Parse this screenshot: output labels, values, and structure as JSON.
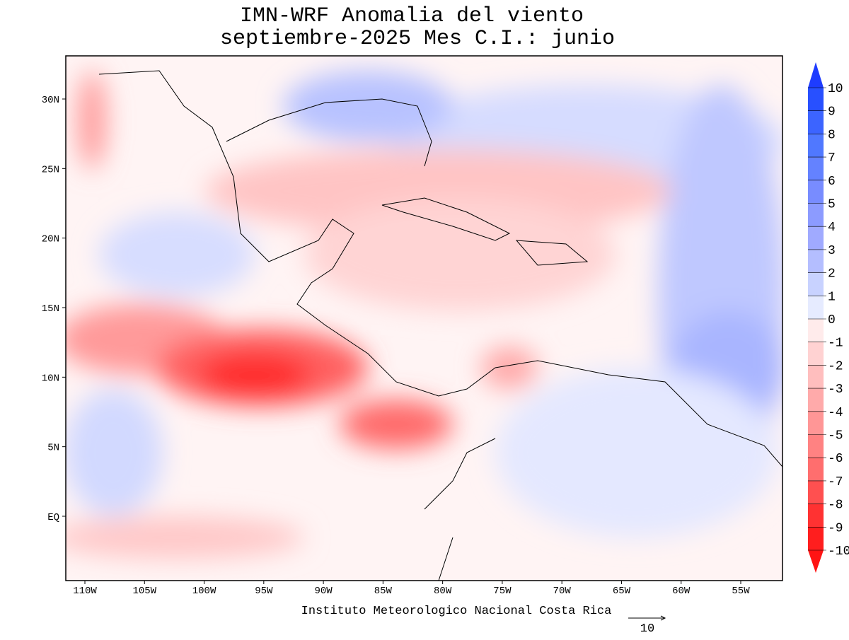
{
  "map": {
    "title": "IMN-WRF Anomalia del viento",
    "subtitle": "septiembre-2025 Mes C.I.: junio",
    "footer": "Instituto Meteorologico Nacional Costa Rica",
    "reference_vector": "10",
    "lon_labels": [
      "110W",
      "105W",
      "100W",
      "95W",
      "90W",
      "85W",
      "80W",
      "75W",
      "70W",
      "65W",
      "60W",
      "55W"
    ],
    "lat_labels": [
      "30N",
      "25N",
      "20N",
      "15N",
      "10N",
      "5N",
      "EQ"
    ],
    "colorbar": {
      "levels": [
        10,
        9,
        8,
        7,
        6,
        5,
        4,
        3,
        2,
        1,
        0,
        -1,
        -2,
        -3,
        -4,
        -5,
        -6,
        -7,
        -8,
        -9,
        -10
      ],
      "colors": [
        "#1e3cff",
        "#2850ff",
        "#3c64ff",
        "#5078ff",
        "#6482ff",
        "#788cff",
        "#8c9bff",
        "#a0aaff",
        "#b4beff",
        "#c8d2ff",
        "#e6ebff",
        "#ffebeb",
        "#ffd2d2",
        "#ffbebe",
        "#ffaaaa",
        "#ff9696",
        "#ff8282",
        "#ff6e6e",
        "#ff5050",
        "#ff3232",
        "#ff1e1e",
        "#ff1414"
      ]
    }
  }
}
